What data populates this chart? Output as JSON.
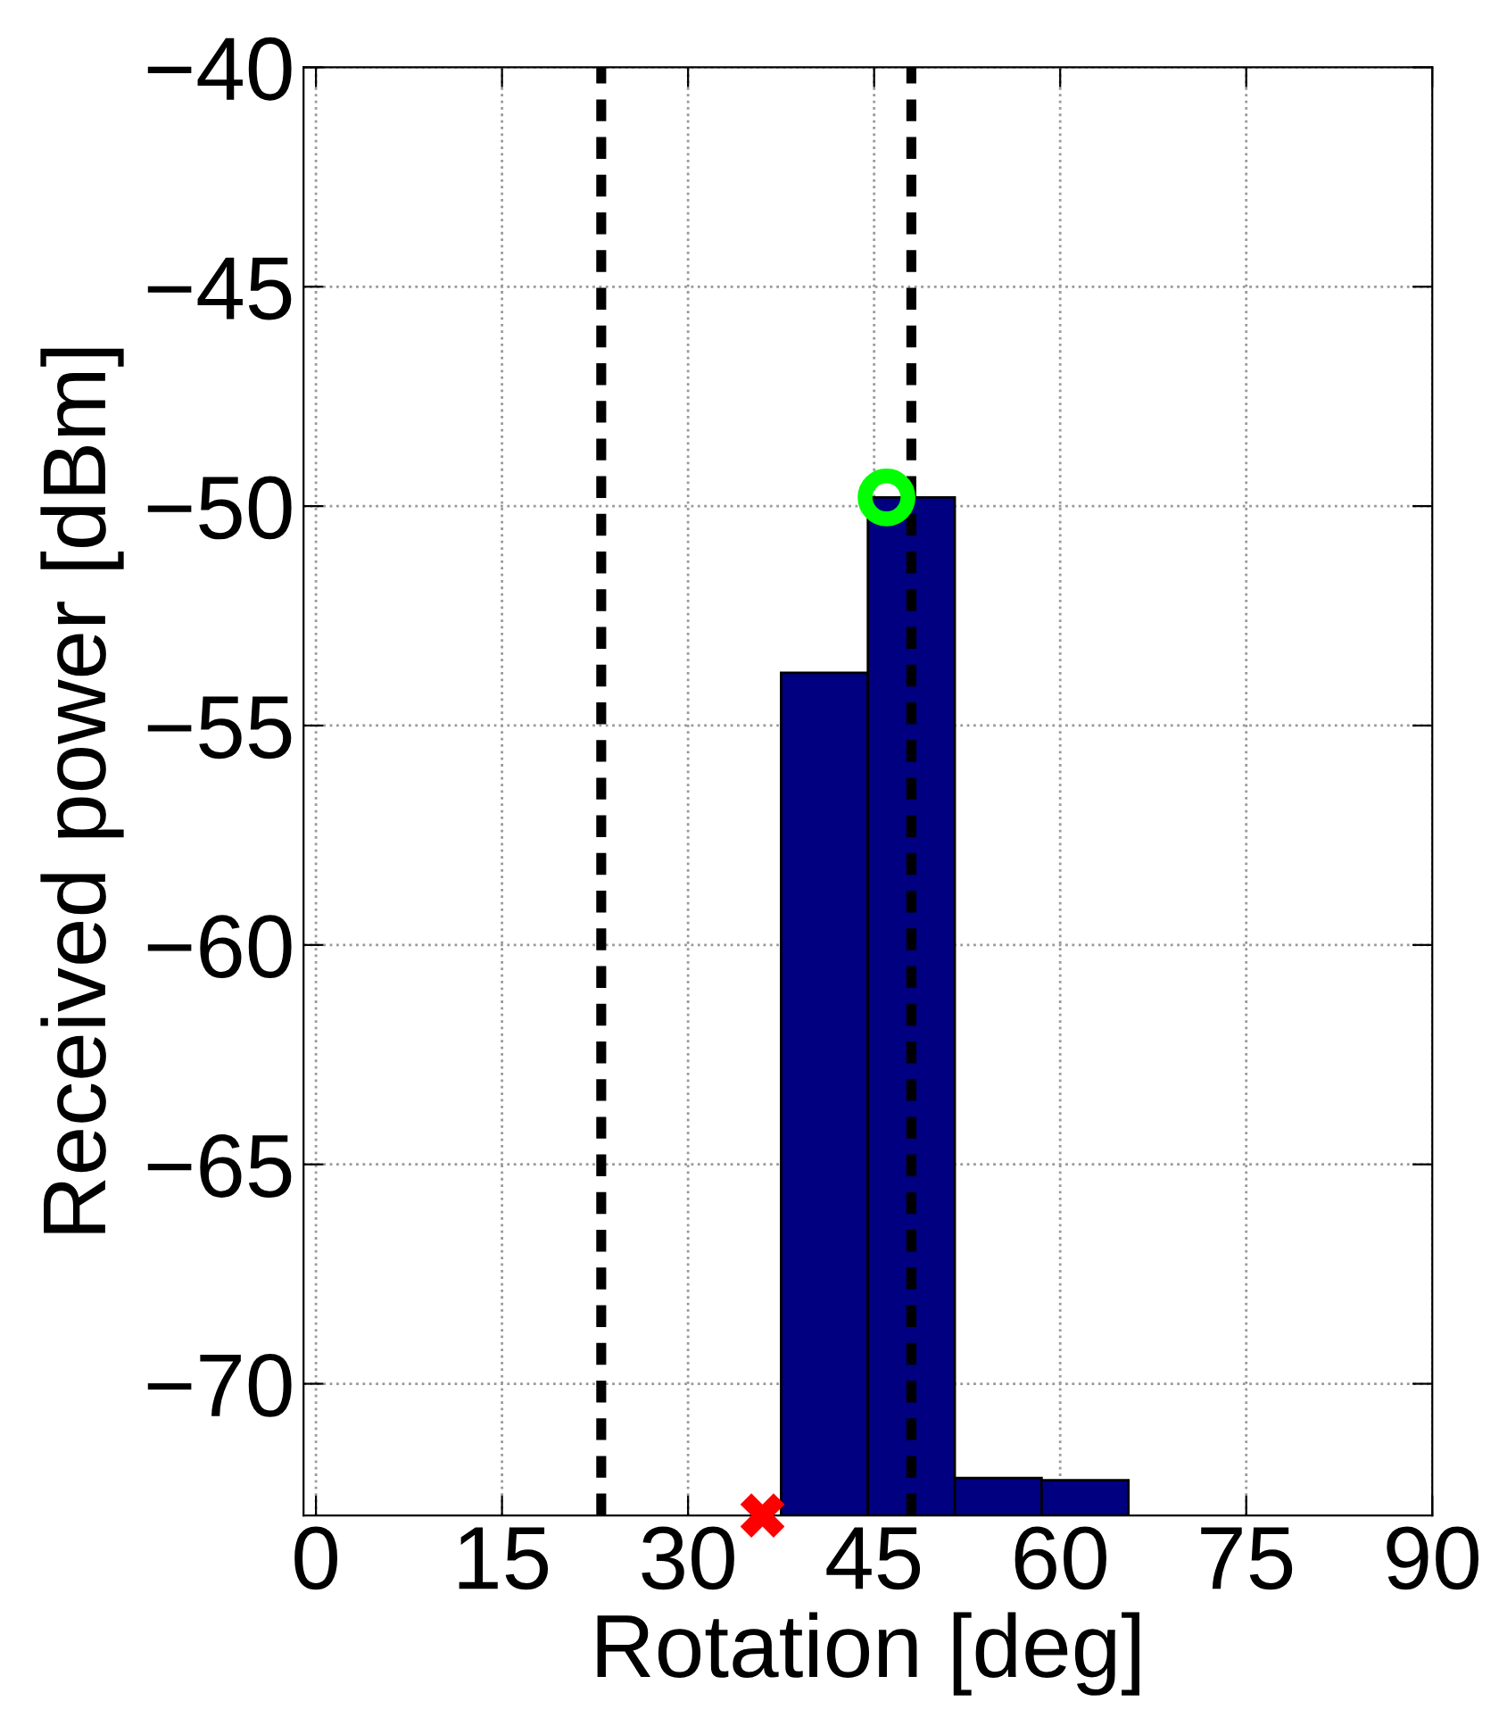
{
  "chart_data": {
    "type": "bar",
    "xlabel": "Rotation [deg]",
    "ylabel": "Received power [dBm]",
    "x": [
      41,
      48,
      55,
      62
    ],
    "base": [
      -73,
      -73,
      -73,
      -73
    ],
    "values": [
      19.2,
      23.2,
      0.85,
      0.8
    ],
    "color": "#000080",
    "series": [
      {
        "type": "scatter",
        "x": [
          46
        ],
        "values": [
          -49.8
        ],
        "color": "#00ff00",
        "marker": "circle"
      },
      {
        "type": "scatter",
        "x": [
          36
        ],
        "values": [
          -73
        ],
        "color": "#ff0000",
        "marker": "cross"
      }
    ],
    "ref_lines": [
      {
        "axis": "x",
        "value": 23,
        "label": null,
        "color": "#000000",
        "line_style": "dashed"
      },
      {
        "axis": "x",
        "value": 48,
        "label": null,
        "color": "#000000",
        "line_style": "dashed"
      }
    ],
    "xlim": [
      -1,
      90
    ],
    "ylim": [
      -73,
      -40
    ],
    "xticks": [
      0,
      15,
      30,
      45,
      60,
      75,
      90
    ],
    "yticks": [
      -70,
      -65,
      -60,
      -55,
      -50,
      -45,
      -40
    ],
    "grid": true
  }
}
